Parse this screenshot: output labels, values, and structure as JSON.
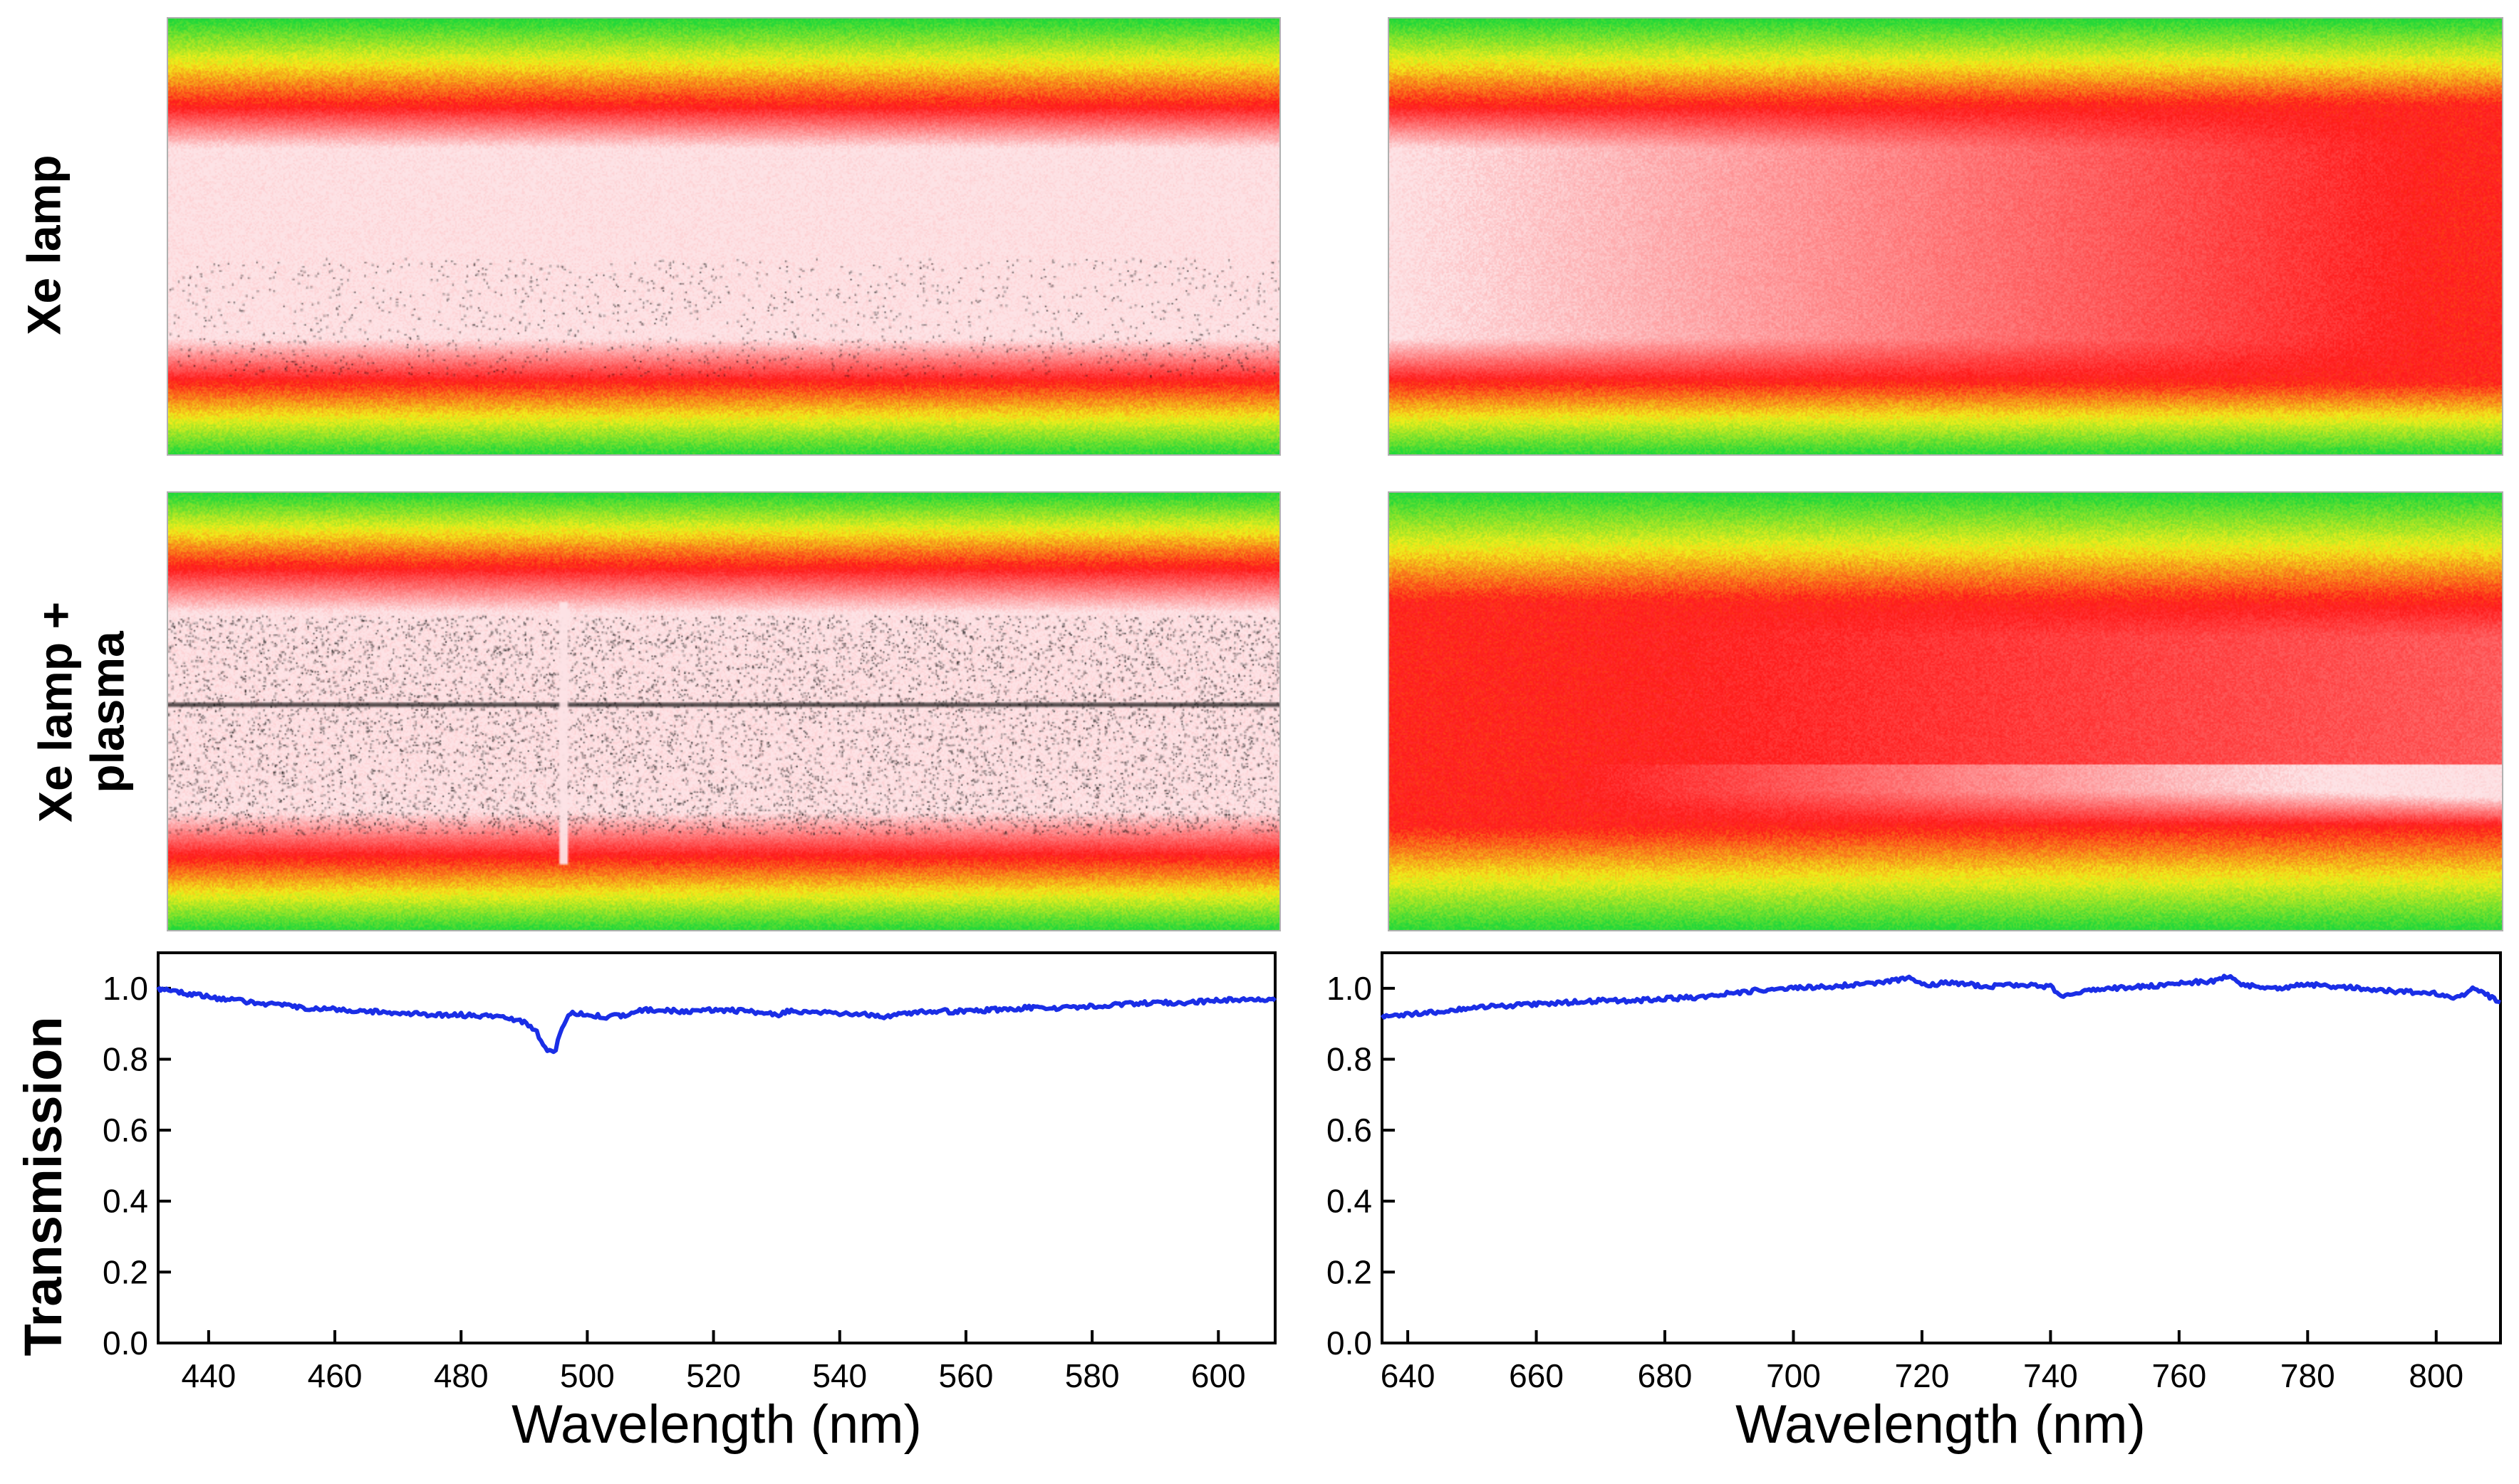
{
  "row_labels": {
    "top": "Xe lamp",
    "middle_line1": "Xe lamp +",
    "middle_line2": "plasma"
  },
  "colors": {
    "line": "#1a2ee6",
    "green": "#22d83a",
    "yellow": "#f2ee1a",
    "red": "#ff1a1a",
    "pale": "#fde3e6",
    "speckle": "#000000"
  },
  "chart_data": [
    {
      "type": "line",
      "title": "",
      "xlabel": "Wavelength (nm)",
      "ylabel": "Transmission",
      "xlim": [
        432,
        609
      ],
      "ylim": [
        0.0,
        1.1
      ],
      "xticks": [
        440,
        460,
        480,
        500,
        520,
        540,
        560,
        580,
        600
      ],
      "yticks": [
        0.0,
        0.2,
        0.4,
        0.6,
        0.8,
        1.0
      ],
      "grid": false,
      "series": [
        {
          "x": [
            432,
            435,
            440,
            445,
            450,
            455,
            460,
            465,
            470,
            475,
            480,
            485,
            488,
            490,
            491,
            492,
            493,
            494,
            495,
            496,
            497,
            498,
            500,
            503,
            506,
            508,
            510,
            515,
            520,
            525,
            528,
            530,
            532,
            535,
            540,
            545,
            548,
            550,
            555,
            560,
            565,
            570,
            575,
            580,
            585,
            590,
            595,
            600,
            605,
            609
          ],
          "y": [
            1.0,
            0.99,
            0.975,
            0.965,
            0.955,
            0.945,
            0.94,
            0.935,
            0.93,
            0.925,
            0.925,
            0.92,
            0.915,
            0.905,
            0.895,
            0.875,
            0.845,
            0.82,
            0.83,
            0.89,
            0.925,
            0.93,
            0.925,
            0.92,
            0.925,
            0.935,
            0.94,
            0.935,
            0.94,
            0.935,
            0.93,
            0.925,
            0.935,
            0.93,
            0.93,
            0.925,
            0.92,
            0.93,
            0.935,
            0.935,
            0.94,
            0.945,
            0.945,
            0.95,
            0.955,
            0.96,
            0.96,
            0.965,
            0.97,
            0.965
          ]
        }
      ],
      "images": {
        "top": {
          "band_red_top": 0.2,
          "band_red_bottom": 0.83,
          "core": "pale",
          "speckle_band": [
            0.55,
            0.82
          ],
          "speckle_density": 0.25
        },
        "bottom": {
          "band_red_top": 0.17,
          "band_red_bottom": 0.83,
          "core": "pale",
          "speckle_band": [
            0.28,
            0.78
          ],
          "speckle_density": 0.9,
          "dark_line": 0.48,
          "gap_x": 495
        }
      }
    },
    {
      "type": "line",
      "title": "",
      "xlabel": "Wavelength (nm)",
      "ylabel": "",
      "xlim": [
        636,
        810
      ],
      "ylim": [
        0.0,
        1.1
      ],
      "xticks": [
        640,
        660,
        680,
        700,
        720,
        740,
        760,
        780,
        800
      ],
      "yticks": [
        0.0,
        0.2,
        0.4,
        0.6,
        0.8,
        1.0
      ],
      "grid": false,
      "series": [
        {
          "x": [
            636,
            640,
            645,
            650,
            655,
            660,
            665,
            670,
            675,
            680,
            685,
            690,
            695,
            700,
            705,
            710,
            715,
            718,
            720,
            725,
            730,
            735,
            740,
            742,
            745,
            750,
            755,
            760,
            765,
            768,
            770,
            775,
            780,
            785,
            790,
            795,
            800,
            803,
            806,
            810
          ],
          "y": [
            0.92,
            0.925,
            0.935,
            0.945,
            0.95,
            0.955,
            0.96,
            0.965,
            0.965,
            0.97,
            0.975,
            0.985,
            0.995,
            1.0,
            1.005,
            1.01,
            1.02,
            1.03,
            1.01,
            1.015,
            1.005,
            1.01,
            1.005,
            0.975,
            0.99,
            1.0,
            1.005,
            1.015,
            1.02,
            1.035,
            1.01,
            1.0,
            1.01,
            1.005,
            0.995,
            0.99,
            0.985,
            0.97,
            1.0,
            0.96
          ]
        }
      ],
      "images": {
        "top": {
          "band_red_top": 0.2,
          "band_red_bottom": 0.83,
          "core": "pale-to-red",
          "speckle_density": 0
        },
        "bottom": {
          "band_red_top": 0.25,
          "band_red_bottom": 0.76,
          "core": "red-to-pale",
          "speckle_density": 0
        }
      }
    }
  ]
}
